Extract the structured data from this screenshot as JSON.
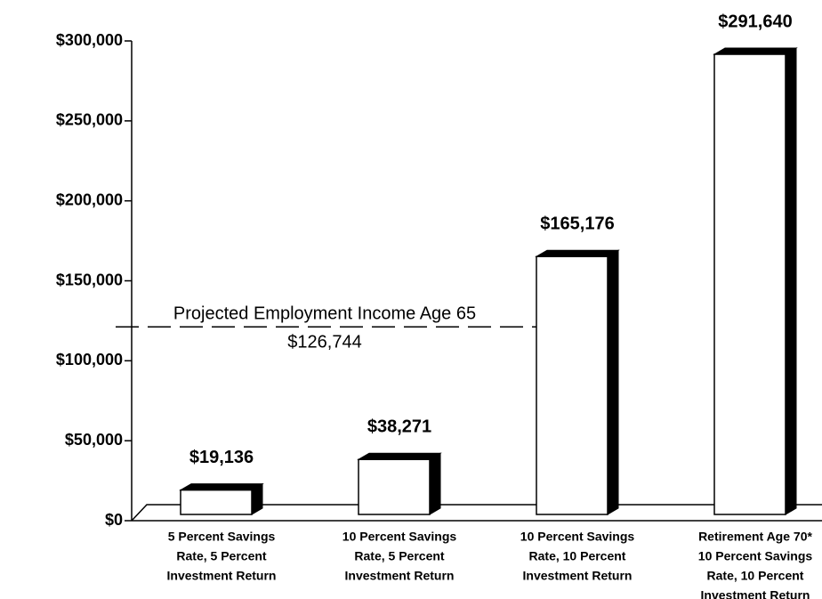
{
  "chart_data": {
    "type": "bar3d",
    "categories": [
      [
        "5 Percent Savings",
        "Rate, 5 Percent",
        "Investment Return"
      ],
      [
        "10 Percent Savings",
        "Rate, 5 Percent",
        "Investment Return"
      ],
      [
        "10 Percent Savings",
        "Rate, 10 Percent",
        "Investment Return"
      ],
      [
        "Retirement Age 70*",
        "10 Percent Savings",
        "Rate, 10 Percent",
        "Investment Return"
      ]
    ],
    "values": [
      19136,
      38271,
      165176,
      291640
    ],
    "value_labels": [
      "$19,136",
      "$38,271",
      "$165,176",
      "$291,640"
    ],
    "color": "#ffffff",
    "ylim": [
      0,
      300000
    ],
    "yticks": [
      {
        "value": 0,
        "label": "$0"
      },
      {
        "value": 50000,
        "label": "$50,000"
      },
      {
        "value": 100000,
        "label": "$100,000"
      },
      {
        "value": 150000,
        "label": "$150,000"
      },
      {
        "value": 200000,
        "label": "$200,000"
      },
      {
        "value": 250000,
        "label": "$250,000"
      },
      {
        "value": 300000,
        "label": "$300,000"
      }
    ],
    "reference_line": {
      "label": "Projected Employment Income Age 65",
      "value": 126744,
      "value_label": "$126,744"
    }
  }
}
